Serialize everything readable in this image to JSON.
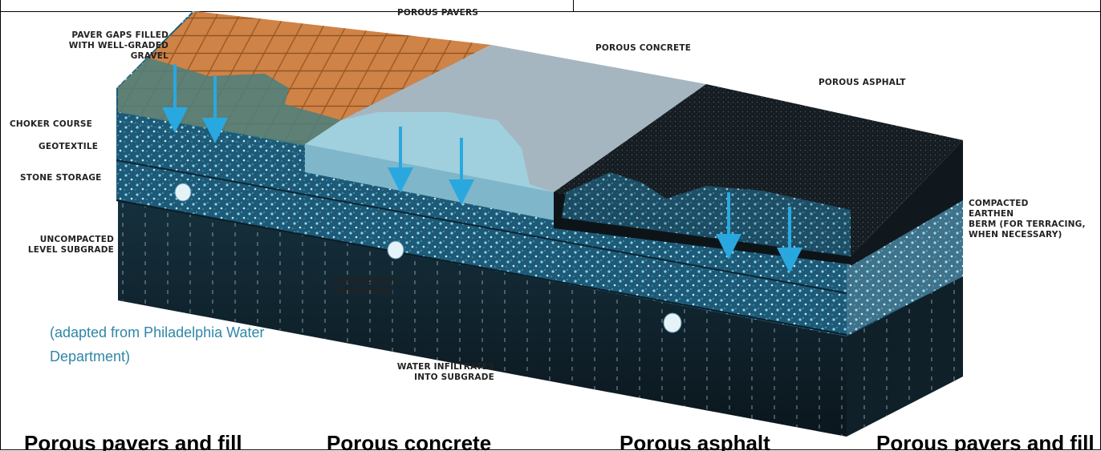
{
  "labels": {
    "porous_pavers": "POROUS PAVERS",
    "paver_gaps": "PAVER GAPS FILLED\nWITH WELL-GRADED\nGRAVEL",
    "porous_concrete": "POROUS CONCRETE",
    "porous_asphalt": "POROUS ASPHALT",
    "choker_course": "CHOKER COURSE",
    "geotextile": "GEOTEXTILE",
    "stone_storage": "STONE STORAGE",
    "uncompacted_subgrade": "UNCOMPACTED\nLEVEL SUBGRADE",
    "underdrain": "UNDERDRAIN\n(OPTIONAL)",
    "compacted_berm": "COMPACTED\nEARTHEN\nBERM (FOR TERRACING,\nWHEN NECESSARY)",
    "water_infiltrates": "WATER INFILTRATES\nINTO SUBGRADE"
  },
  "credit": "(adapted from Philadelphia Water Department)",
  "bottom_captions": [
    "Porous pavers and fill",
    "Porous concrete",
    "Porous asphalt",
    "Porous pavers and fill"
  ],
  "colors": {
    "water_arrow": "#29a8e0",
    "pavers": "#c8763a",
    "concrete": "#9fb2bd",
    "asphalt": "#141a1e",
    "stone": "#1f5a76",
    "subgrade": "#12252f",
    "credit_text": "#2f86a8"
  }
}
